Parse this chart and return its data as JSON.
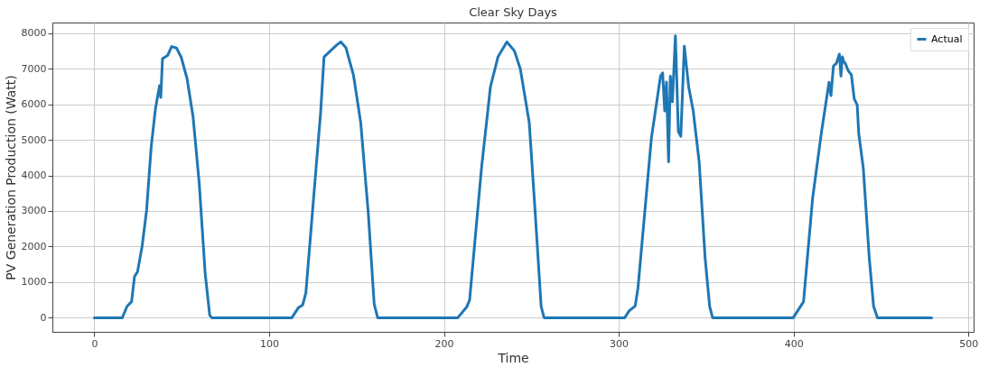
{
  "chart_data": {
    "type": "line",
    "title": "Clear Sky Days",
    "xlabel": "Time",
    "ylabel": "PV Generation Production (Watt)",
    "xlim": [
      -24,
      503
    ],
    "xticks": [
      0,
      100,
      200,
      300,
      400,
      500
    ],
    "ylim": [
      -395,
      8295
    ],
    "yticks": [
      0,
      1000,
      2000,
      3000,
      4000,
      5000,
      6000,
      7000,
      8000
    ],
    "grid": true,
    "legend": "top right",
    "line_style": "solid",
    "marker": "none",
    "series": [
      {
        "name": "Actual",
        "color": "#1f77b4",
        "x": [
          0,
          16,
          18.7,
          21.3,
          23,
          24.7,
          27.3,
          29.9,
          32.5,
          35,
          37.3,
          38,
          39,
          41.9,
          44.2,
          47,
          49.7,
          53,
          56.5,
          60,
          63.4,
          66,
          67.2,
          113,
          116.7,
          119.2,
          121,
          124,
          127,
          129.4,
          131.4,
          138.8,
          141,
          143.9,
          148.2,
          152.4,
          156.7,
          160.1,
          162.1,
          207.9,
          213,
          214.7,
          215.6,
          221.5,
          226.6,
          230.9,
          236,
          240.3,
          243.7,
          248.8,
          252.2,
          255.6,
          257.3,
          303.4,
          305.9,
          309.4,
          311,
          318.7,
          323.9,
          325.1,
          326.3,
          327.3,
          328.5,
          329.5,
          330.7,
          332.4,
          334.1,
          335.5,
          337.5,
          340,
          342.6,
          346,
          349.4,
          352,
          353.7,
          399.8,
          402.3,
          405.7,
          410.9,
          416,
          420.3,
          421.4,
          422.8,
          424.5,
          426.2,
          427.1,
          427.9,
          428.8,
          429.6,
          431.3,
          433.1,
          434.7,
          436.4,
          437.3,
          439.9,
          443.3,
          445.8,
          448,
          479
        ],
        "values": [
          0,
          0,
          320,
          450,
          1160,
          1290,
          2000,
          3020,
          4790,
          5890,
          6520,
          6190,
          7280,
          7370,
          7620,
          7580,
          7320,
          6730,
          5640,
          3780,
          1250,
          70,
          0,
          0,
          280,
          360,
          700,
          2500,
          4300,
          5730,
          7330,
          7670,
          7750,
          7590,
          6830,
          5480,
          2950,
          380,
          0,
          0,
          300,
          500,
          1000,
          4210,
          6490,
          7330,
          7750,
          7500,
          6990,
          5480,
          2950,
          320,
          0,
          0,
          190,
          330,
          840,
          5060,
          6790,
          6880,
          5810,
          6620,
          4380,
          6790,
          6070,
          7920,
          5230,
          5100,
          7630,
          6490,
          5810,
          4380,
          1680,
          320,
          0,
          0,
          190,
          450,
          3360,
          5230,
          6620,
          6240,
          7070,
          7150,
          7410,
          6790,
          7330,
          7190,
          7150,
          6940,
          6820,
          6150,
          5980,
          5170,
          4200,
          1680,
          320,
          0,
          0
        ]
      }
    ]
  }
}
